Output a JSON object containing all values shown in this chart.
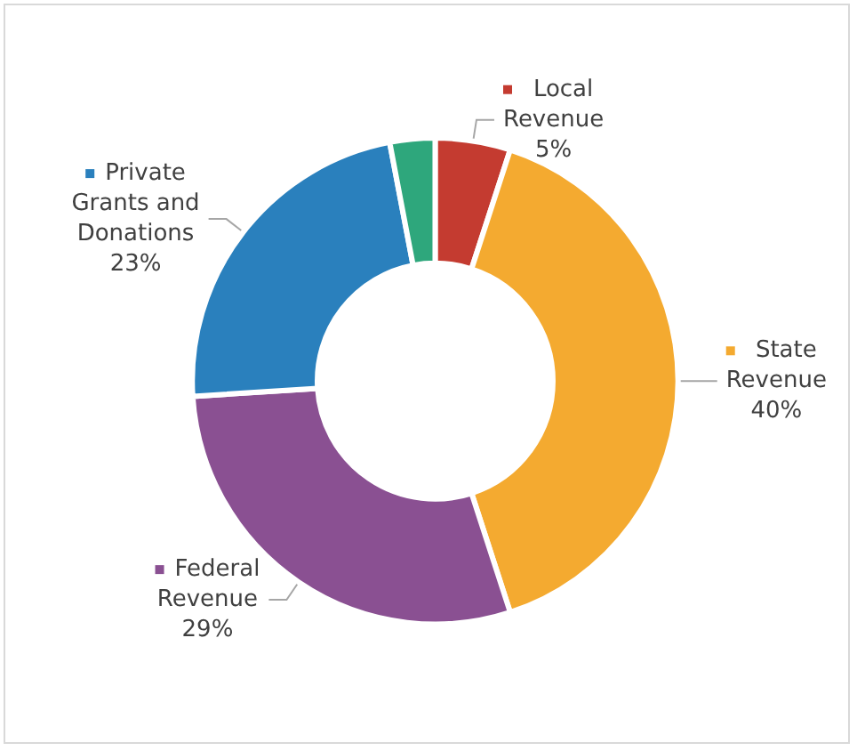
{
  "chart_data": {
    "type": "donut",
    "categories": [
      "Local Revenue",
      "State Revenue",
      "Federal Revenue",
      "Private Grants and Donations",
      null
    ],
    "values": [
      5,
      40,
      29,
      23,
      3
    ],
    "colors": [
      "#c43b30",
      "#f4aa30",
      "#8a5092",
      "#2a80bd",
      "#2ea77c"
    ],
    "value_labels": [
      "5%",
      "40%",
      "29%",
      "23%",
      null
    ],
    "legend": "right"
  }
}
